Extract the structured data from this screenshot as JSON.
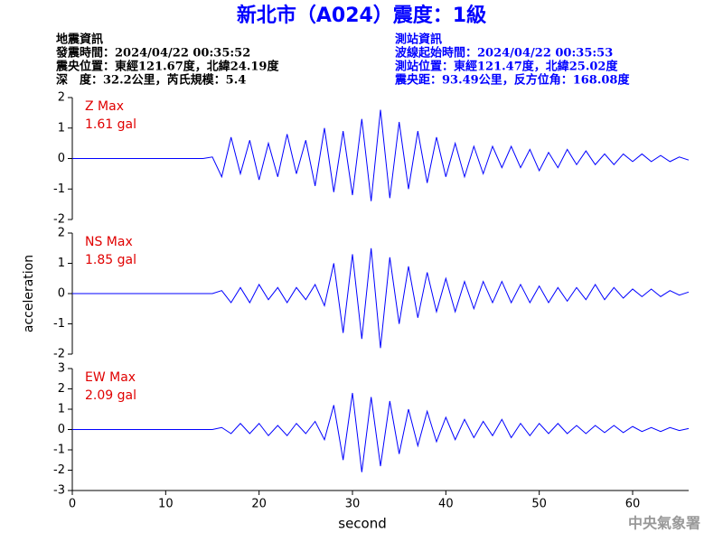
{
  "header": {
    "title": "新北市（A024）震度：1級",
    "left": [
      "地震資訊",
      "發震時間：2024/04/22 00:35:52",
      "震央位置：東經121.67度，北緯24.19度",
      "深　度：32.2公里，芮氏規模：5.4"
    ],
    "right": [
      "測站資訊",
      "波線起始時間：2024/04/22 00:35:53",
      "測站位置：東經121.47度，北緯25.02度",
      "震央距：93.49公里，反方位角：168.08度"
    ]
  },
  "chart_data": [
    {
      "type": "line",
      "annotation": [
        "Z Max",
        "1.61 gal"
      ],
      "xlim": [
        0,
        66
      ],
      "ylim": [
        -2,
        2
      ],
      "yticks": [
        -2,
        -1,
        0,
        1,
        2
      ],
      "x": [
        0,
        1,
        2,
        3,
        4,
        5,
        6,
        7,
        8,
        9,
        10,
        11,
        12,
        13,
        14,
        15,
        16,
        17,
        18,
        19,
        20,
        21,
        22,
        23,
        24,
        25,
        26,
        27,
        28,
        29,
        30,
        31,
        32,
        33,
        34,
        35,
        36,
        37,
        38,
        39,
        40,
        41,
        42,
        43,
        44,
        45,
        46,
        47,
        48,
        49,
        50,
        51,
        52,
        53,
        54,
        55,
        56,
        57,
        58,
        59,
        60,
        61,
        62,
        63,
        64,
        65,
        66
      ],
      "series": [
        {
          "color": "#0000ff",
          "values": [
            0,
            0,
            0,
            0,
            0,
            0,
            0,
            0,
            0,
            0,
            0,
            0,
            0,
            0,
            0,
            0.05,
            -0.6,
            0.7,
            -0.5,
            0.6,
            -0.7,
            0.5,
            -0.6,
            0.8,
            -0.5,
            0.6,
            -0.9,
            1.0,
            -1.1,
            0.9,
            -1.2,
            1.3,
            -1.4,
            1.6,
            -1.3,
            1.2,
            -1.0,
            0.9,
            -0.8,
            0.7,
            -0.6,
            0.5,
            -0.6,
            0.4,
            -0.5,
            0.4,
            -0.3,
            0.4,
            -0.3,
            0.3,
            -0.4,
            0.2,
            -0.3,
            0.3,
            -0.2,
            0.25,
            -0.2,
            0.15,
            -0.2,
            0.15,
            -0.1,
            0.15,
            -0.1,
            0.1,
            -0.1,
            0.05,
            -0.05
          ]
        }
      ]
    },
    {
      "type": "line",
      "annotation": [
        "NS Max",
        "1.85 gal"
      ],
      "ylabel": "acceleration",
      "xlim": [
        0,
        66
      ],
      "ylim": [
        -2,
        2
      ],
      "yticks": [
        -2,
        -1,
        0,
        1,
        2
      ],
      "x": [
        0,
        1,
        2,
        3,
        4,
        5,
        6,
        7,
        8,
        9,
        10,
        11,
        12,
        13,
        14,
        15,
        16,
        17,
        18,
        19,
        20,
        21,
        22,
        23,
        24,
        25,
        26,
        27,
        28,
        29,
        30,
        31,
        32,
        33,
        34,
        35,
        36,
        37,
        38,
        39,
        40,
        41,
        42,
        43,
        44,
        45,
        46,
        47,
        48,
        49,
        50,
        51,
        52,
        53,
        54,
        55,
        56,
        57,
        58,
        59,
        60,
        61,
        62,
        63,
        64,
        65,
        66
      ],
      "series": [
        {
          "color": "#0000ff",
          "values": [
            0,
            0,
            0,
            0,
            0,
            0,
            0,
            0,
            0,
            0,
            0,
            0,
            0,
            0,
            0,
            0,
            0.1,
            -0.3,
            0.2,
            -0.3,
            0.3,
            -0.2,
            0.2,
            -0.3,
            0.2,
            -0.2,
            0.3,
            -0.4,
            1.0,
            -1.3,
            1.3,
            -1.5,
            1.5,
            -1.8,
            1.2,
            -1.0,
            0.9,
            -0.8,
            0.7,
            -0.6,
            0.5,
            -0.6,
            0.4,
            -0.5,
            0.4,
            -0.3,
            0.4,
            -0.3,
            0.3,
            -0.3,
            0.25,
            -0.3,
            0.2,
            -0.25,
            0.2,
            -0.2,
            0.3,
            -0.2,
            0.2,
            -0.15,
            0.15,
            -0.1,
            0.15,
            -0.1,
            0.1,
            -0.05,
            0.05
          ]
        }
      ]
    },
    {
      "type": "line",
      "annotation": [
        "EW Max",
        "2.09 gal"
      ],
      "xlabel": "second",
      "xlim": [
        0,
        66
      ],
      "xticks": [
        0,
        10,
        20,
        30,
        40,
        50,
        60
      ],
      "ylim": [
        -3,
        3
      ],
      "yticks": [
        -3,
        -2,
        -1,
        0,
        1,
        2,
        3
      ],
      "x": [
        0,
        1,
        2,
        3,
        4,
        5,
        6,
        7,
        8,
        9,
        10,
        11,
        12,
        13,
        14,
        15,
        16,
        17,
        18,
        19,
        20,
        21,
        22,
        23,
        24,
        25,
        26,
        27,
        28,
        29,
        30,
        31,
        32,
        33,
        34,
        35,
        36,
        37,
        38,
        39,
        40,
        41,
        42,
        43,
        44,
        45,
        46,
        47,
        48,
        49,
        50,
        51,
        52,
        53,
        54,
        55,
        56,
        57,
        58,
        59,
        60,
        61,
        62,
        63,
        64,
        65,
        66
      ],
      "series": [
        {
          "color": "#0000ff",
          "values": [
            0,
            0,
            0,
            0,
            0,
            0,
            0,
            0,
            0,
            0,
            0,
            0,
            0,
            0,
            0,
            0,
            0.1,
            -0.2,
            0.3,
            -0.2,
            0.3,
            -0.3,
            0.2,
            -0.3,
            0.3,
            -0.2,
            0.4,
            -0.5,
            1.2,
            -1.5,
            1.8,
            -2.1,
            1.6,
            -1.8,
            1.4,
            -1.2,
            1.0,
            -0.8,
            0.9,
            -0.6,
            0.6,
            -0.5,
            0.5,
            -0.4,
            0.4,
            -0.3,
            0.5,
            -0.4,
            0.3,
            -0.3,
            0.3,
            -0.2,
            0.3,
            -0.2,
            0.2,
            -0.2,
            0.2,
            -0.15,
            0.2,
            -0.15,
            0.15,
            -0.1,
            0.1,
            -0.1,
            0.1,
            -0.05,
            0.05
          ]
        }
      ]
    }
  ],
  "footer": "中央氣象署"
}
